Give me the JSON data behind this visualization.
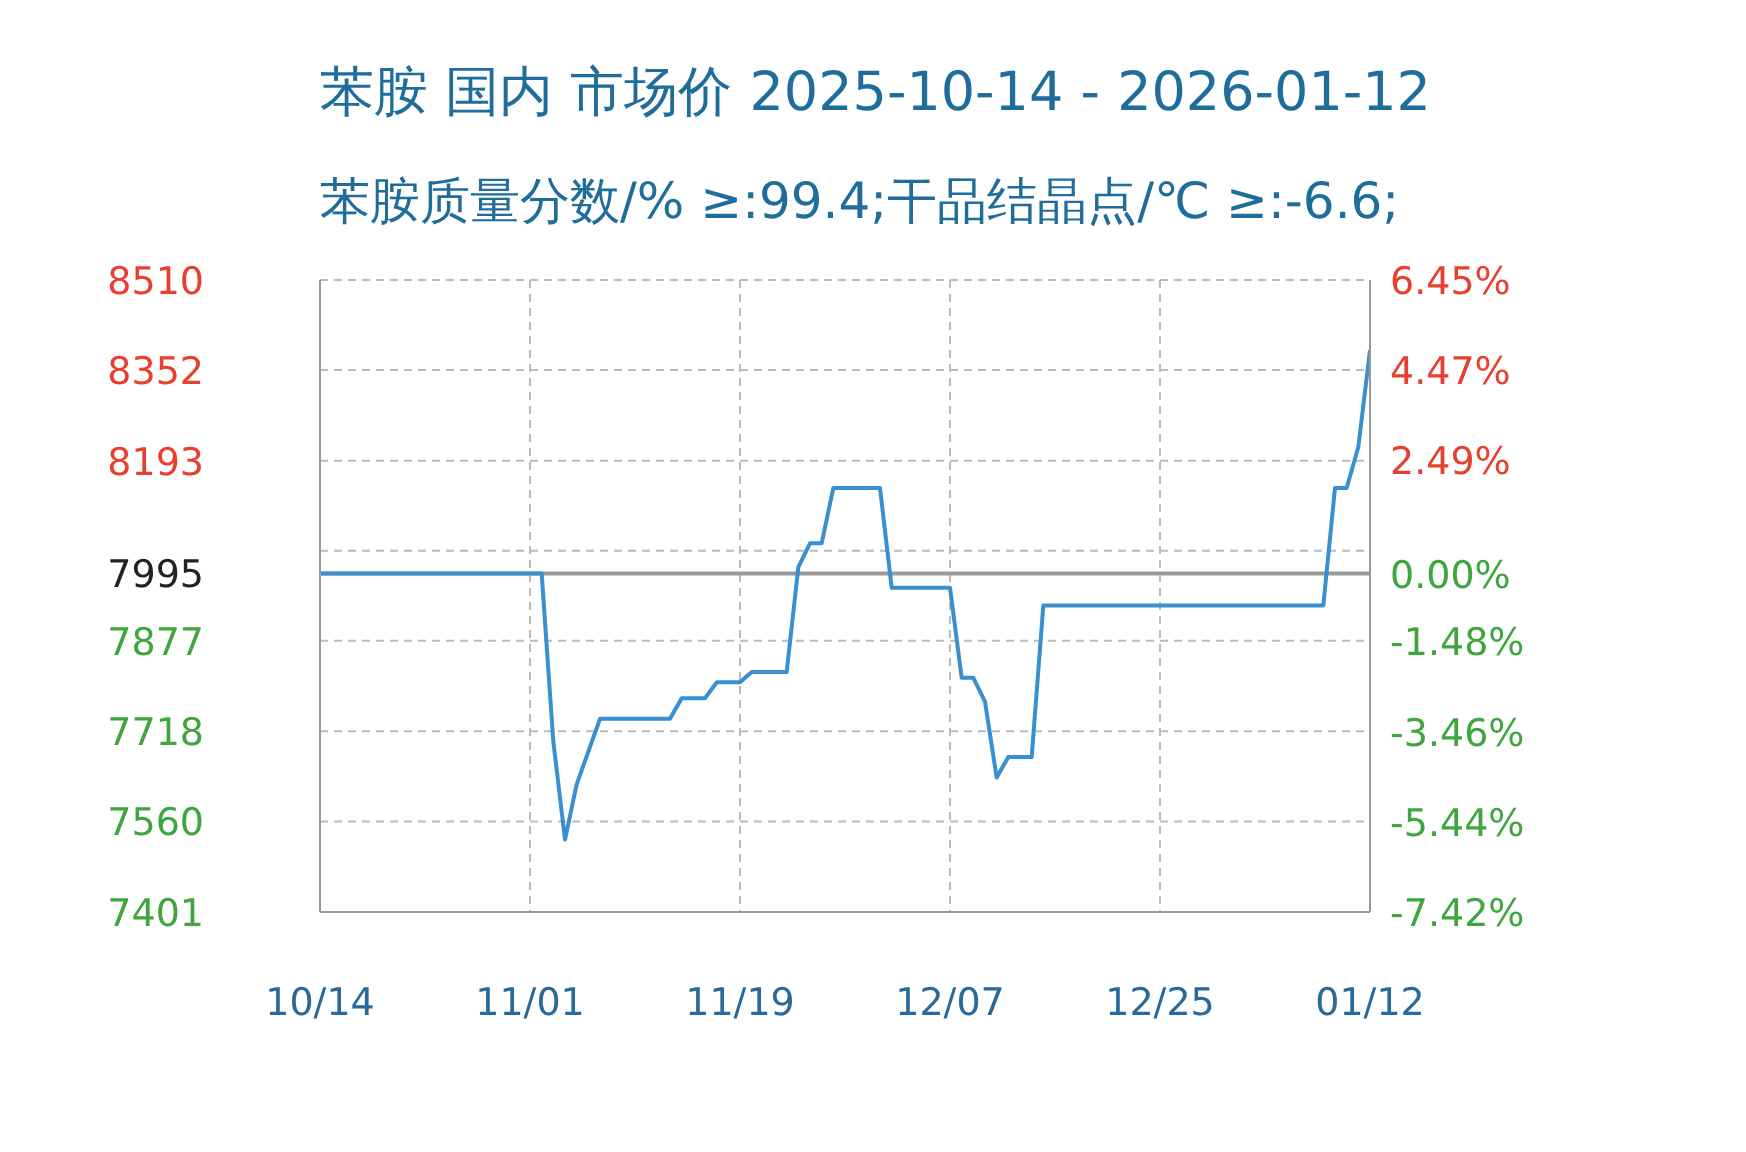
{
  "chart_data": {
    "type": "line",
    "title": "苯胺 国内 市场价 2025-10-14 - 2026-01-12",
    "subtitle": "苯胺质量分数/% ≥:99.4;干品结晶点/℃ ≥:-6.6;",
    "x": [
      "2025-10-14",
      "2025-11-02",
      "2025-11-03",
      "2025-11-04",
      "2025-11-05",
      "2025-11-07",
      "2025-11-13",
      "2025-11-14",
      "2025-11-16",
      "2025-11-17",
      "2025-11-19",
      "2025-11-20",
      "2025-11-23",
      "2025-11-24",
      "2025-11-25",
      "2025-11-26",
      "2025-11-27",
      "2025-12-01",
      "2025-12-02",
      "2025-12-07",
      "2025-12-08",
      "2025-12-09",
      "2025-12-10",
      "2025-12-11",
      "2025-12-12",
      "2025-12-14",
      "2025-12-15",
      "2026-01-08",
      "2026-01-09",
      "2026-01-10",
      "2026-01-11",
      "2026-01-12"
    ],
    "series": [
      {
        "color": "#3a8fd0",
        "values": [
          7995,
          7995,
          7700,
          7528,
          7625,
          7740,
          7740,
          7776,
          7776,
          7804,
          7804,
          7822,
          7822,
          8006,
          8048,
          8048,
          8145,
          8145,
          7970,
          7970,
          7812,
          7812,
          7770,
          7637,
          7673,
          7673,
          7939,
          7939,
          8145,
          8145,
          8217,
          8387
        ]
      }
    ],
    "xlim": [
      "2025-10-14",
      "2026-01-12"
    ],
    "xticks": [
      {
        "value": "2025-10-14",
        "label": "10/14"
      },
      {
        "value": "2025-11-01",
        "label": "11/01"
      },
      {
        "value": "2025-11-19",
        "label": "11/19"
      },
      {
        "value": "2025-12-07",
        "label": "12/07"
      },
      {
        "value": "2025-12-25",
        "label": "12/25"
      },
      {
        "value": "2026-01-12",
        "label": "01/12"
      }
    ],
    "ylim": [
      7401,
      8510
    ],
    "yticks": [
      8510,
      8352,
      8193,
      {
        "value": 8035,
        "label": null
      },
      7995,
      7877,
      7718,
      7560,
      7401
    ],
    "y2lim": [
      -7.42,
      6.45
    ],
    "y2ticks": [
      {
        "value": 6.45,
        "label": "6.45%"
      },
      {
        "value": 4.47,
        "label": "4.47%"
      },
      {
        "value": 2.49,
        "label": "2.49%"
      },
      {
        "value": 0.5,
        "label": null
      },
      {
        "value": 0,
        "label": "0.00%"
      },
      {
        "value": -1.48,
        "label": "-1.48%"
      },
      {
        "value": -3.46,
        "label": "-3.46%"
      },
      {
        "value": -5.44,
        "label": "-5.44%"
      },
      {
        "value": -7.42,
        "label": "-7.42%"
      }
    ],
    "ref_lines": [
      {
        "axis": "y",
        "value": 7995,
        "color": "#999999"
      }
    ],
    "grid": true,
    "line_style": "solid",
    "marker": "none",
    "legend": false
  }
}
